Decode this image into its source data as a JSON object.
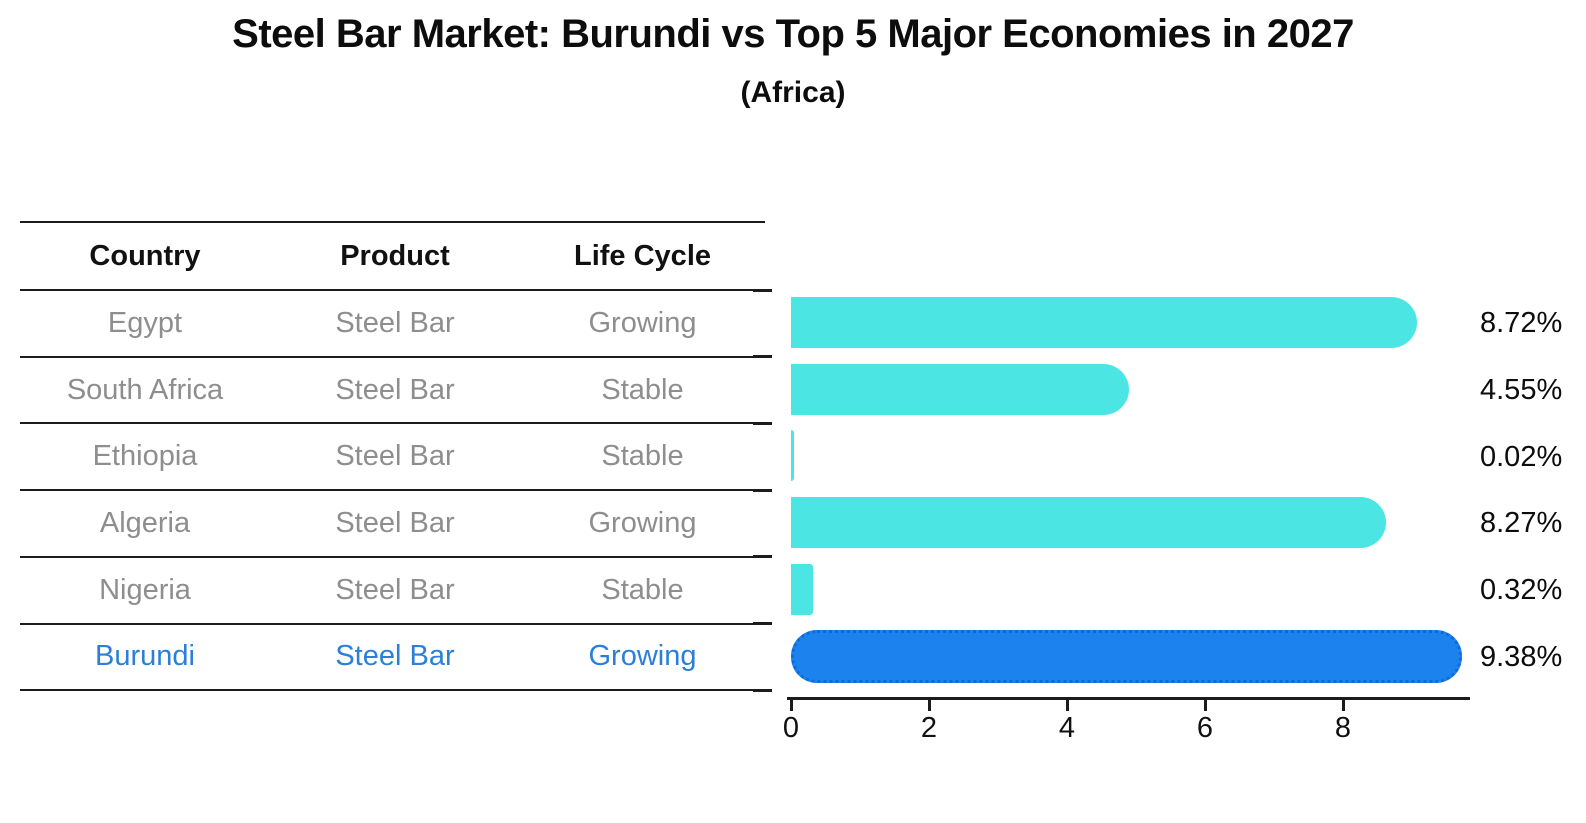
{
  "title": "Steel Bar Market: Burundi vs Top 5 Major Economies in 2027",
  "subtitle": "(Africa)",
  "table": {
    "columns": [
      "Country",
      "Product",
      "Life Cycle"
    ],
    "rows": [
      {
        "country": "Egypt",
        "product": "Steel Bar",
        "life_cycle": "Growing",
        "highlight": false
      },
      {
        "country": "South Africa",
        "product": "Steel Bar",
        "life_cycle": "Stable",
        "highlight": false
      },
      {
        "country": "Ethiopia",
        "product": "Steel Bar",
        "life_cycle": "Stable",
        "highlight": false
      },
      {
        "country": "Algeria",
        "product": "Steel Bar",
        "life_cycle": "Growing",
        "highlight": false
      },
      {
        "country": "Nigeria",
        "product": "Steel Bar",
        "life_cycle": "Stable",
        "highlight": false
      },
      {
        "country": "Burundi",
        "product": "Steel Bar",
        "life_cycle": "Growing",
        "highlight": true
      }
    ]
  },
  "chart_data": {
    "type": "bar",
    "orientation": "horizontal",
    "title": "Steel Bar Market: Burundi vs Top 5 Major Economies in 2027",
    "subtitle": "(Africa)",
    "categories": [
      "Egypt",
      "South Africa",
      "Ethiopia",
      "Algeria",
      "Nigeria",
      "Burundi"
    ],
    "values": [
      8.72,
      4.55,
      0.02,
      8.27,
      0.32,
      9.38
    ],
    "value_labels": [
      "8.72%",
      "4.55%",
      "0.02%",
      "8.27%",
      "0.32%",
      "9.38%"
    ],
    "x_ticks": [
      0,
      2,
      4,
      6,
      8
    ],
    "xlim": [
      0,
      9.84
    ],
    "grid": false,
    "legend": false,
    "bar_color": "#4be5e3",
    "highlight_index": 5,
    "highlight_bar_color": "#1c82ee",
    "highlight_border_color": "#0d6bd8",
    "highlight_text_color": "#2b7fd9"
  }
}
